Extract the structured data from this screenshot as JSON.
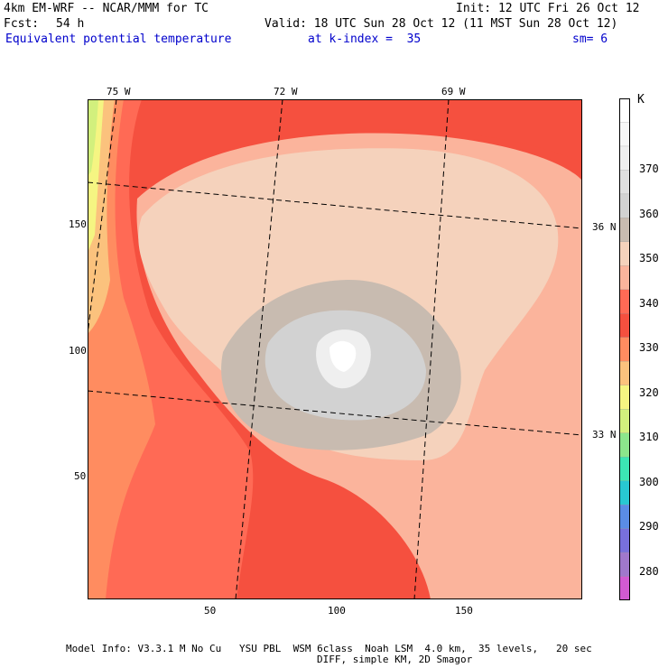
{
  "header": {
    "model_line": "4km EM-WRF -- NCAR/MMM for TC",
    "init_line": "Init: 12 UTC Fri 26 Oct 12",
    "fcst_label": "Fcst:",
    "fcst_value": "54 h",
    "valid_line": "Valid: 18 UTC Sun 28 Oct 12 (11 MST Sun 28 Oct 12)",
    "field_name": "Equivalent potential temperature",
    "level": "at k-index =  35",
    "smoothing": "sm= 6"
  },
  "map": {
    "longitude_labels": [
      "75 W",
      "72 W",
      "69 W"
    ],
    "latitude_labels": [
      "36 N",
      "33 N"
    ],
    "x_ticks": [
      "50",
      "100",
      "150"
    ],
    "y_ticks": [
      "150",
      "100",
      "50"
    ],
    "grid_x_range": [
      0,
      196
    ],
    "grid_y_range": [
      0,
      196
    ]
  },
  "colorbar": {
    "unit": "K",
    "tick_labels": [
      "370",
      "360",
      "350",
      "340",
      "330",
      "320",
      "310",
      "300",
      "290",
      "280"
    ],
    "colors": [
      "#ffffff",
      "#f7f7f7",
      "#efefef",
      "#e0e0e0",
      "#d2d2d2",
      "#c8bbb0",
      "#f5d2bc",
      "#fbb49c",
      "#ff6a55",
      "#f5503f",
      "#ff8c60",
      "#fbc27d",
      "#f5f582",
      "#d2f07d",
      "#8ce68c",
      "#3ce6b4",
      "#28c8d2",
      "#5a8ce6",
      "#7870dc",
      "#a078cc",
      "#d25ad2"
    ]
  },
  "footer": {
    "line1": "Model Info: V3.3.1 M No Cu   YSU PBL  WSM 6class  Noah LSM  4.0 km,  35 levels,   20 sec",
    "line2": "DIFF, simple KM, 2D Smagor"
  }
}
